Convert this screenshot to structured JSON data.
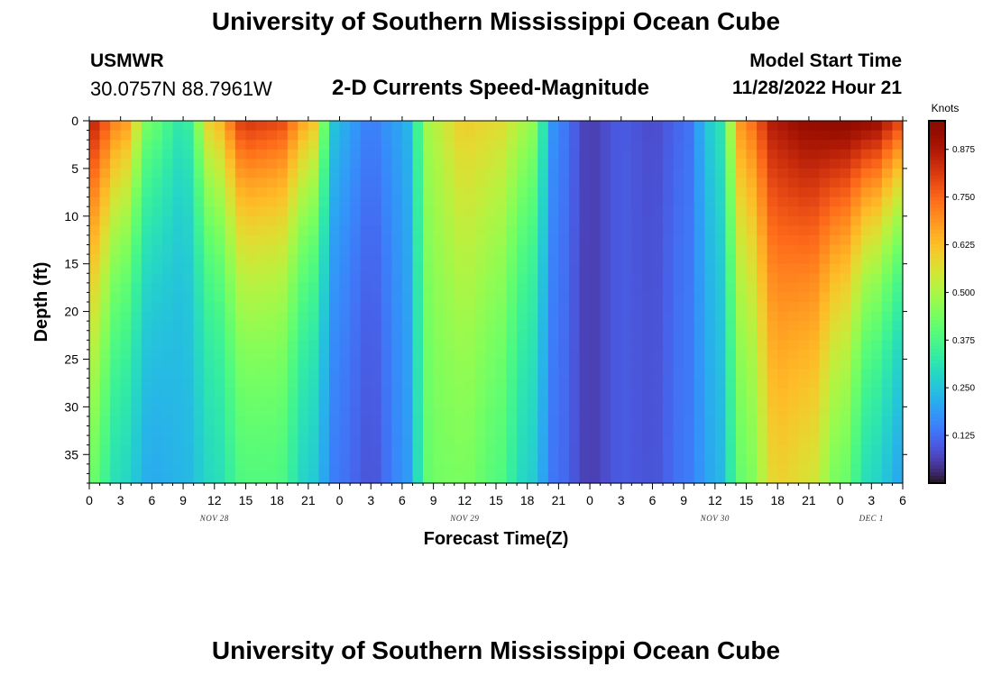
{
  "header": {
    "title": "University of Southern Mississippi Ocean Cube",
    "station_id": "USMWR",
    "coordinates": "30.0757N  88.7961W",
    "subtitle": "2-D Currents Speed-Magnitude",
    "model_start_label": "Model Start Time",
    "model_start_time": "11/28/2022 Hour 21"
  },
  "footer": {
    "title": "University of Southern Mississippi Ocean Cube"
  },
  "colors": {
    "low": "#30123b",
    "mid": "#a4fc3c",
    "high": "#7a0403",
    "background": "#ffffff"
  },
  "chart_data": {
    "type": "heatmap",
    "title": "2-D Currents Speed-Magnitude",
    "xlabel": "Forecast Time(Z)",
    "ylabel": "Depth (ft)",
    "colorbar_label": "Knots",
    "xlim": [
      0,
      78
    ],
    "ylim": [
      0,
      38
    ],
    "y_inverted": true,
    "x_ticks": [
      0,
      3,
      6,
      9,
      12,
      15,
      18,
      21,
      24,
      27,
      30,
      33,
      36,
      39,
      42,
      45,
      48,
      51,
      54,
      57,
      60,
      63,
      66,
      69,
      72,
      75,
      78
    ],
    "x_tick_labels": [
      "0",
      "3",
      "6",
      "9",
      "12",
      "15",
      "18",
      "21",
      "0",
      "3",
      "6",
      "9",
      "12",
      "15",
      "18",
      "21",
      "0",
      "3",
      "6",
      "9",
      "12",
      "15",
      "18",
      "21",
      "0",
      "3",
      "6"
    ],
    "y_ticks": [
      0,
      5,
      10,
      15,
      20,
      25,
      30,
      35
    ],
    "y_tick_labels": [
      "0",
      "5",
      "10",
      "15",
      "20",
      "25",
      "30",
      "35"
    ],
    "day_labels": [
      {
        "label": "NOV 28",
        "x": 12
      },
      {
        "label": "NOV 29",
        "x": 36
      },
      {
        "label": "NOV 30",
        "x": 60
      },
      {
        "label": "DEC 1",
        "x": 75
      }
    ],
    "colorbar_range": [
      0,
      0.95
    ],
    "colorbar_ticks": [
      0.125,
      0.25,
      0.375,
      0.5,
      0.625,
      0.75,
      0.875
    ],
    "colorbar_tick_labels": [
      "0.125",
      "0.250",
      "0.375",
      "0.500",
      "0.625",
      "0.750",
      "0.875"
    ],
    "grid_columns": 78,
    "grid_rows": 38,
    "columns": [
      {
        "t": 0,
        "surface": 0.85,
        "bottom": 0.28,
        "decay": 28
      },
      {
        "t": 3,
        "surface": 0.7,
        "bottom": 0.22,
        "decay": 20
      },
      {
        "t": 6,
        "surface": 0.42,
        "bottom": 0.18,
        "decay": 18
      },
      {
        "t": 9,
        "surface": 0.32,
        "bottom": 0.22,
        "decay": 14
      },
      {
        "t": 12,
        "surface": 0.62,
        "bottom": 0.26,
        "decay": 16
      },
      {
        "t": 15,
        "surface": 0.82,
        "bottom": 0.33,
        "decay": 18
      },
      {
        "t": 18,
        "surface": 0.8,
        "bottom": 0.33,
        "decay": 18
      },
      {
        "t": 21,
        "surface": 0.65,
        "bottom": 0.22,
        "decay": 18
      },
      {
        "t": 24,
        "surface": 0.22,
        "bottom": 0.12,
        "decay": 20
      },
      {
        "t": 27,
        "surface": 0.15,
        "bottom": 0.08,
        "decay": 20
      },
      {
        "t": 30,
        "surface": 0.2,
        "bottom": 0.16,
        "decay": 20
      },
      {
        "t": 33,
        "surface": 0.52,
        "bottom": 0.4,
        "decay": 30
      },
      {
        "t": 36,
        "surface": 0.6,
        "bottom": 0.38,
        "decay": 30
      },
      {
        "t": 39,
        "surface": 0.58,
        "bottom": 0.32,
        "decay": 30
      },
      {
        "t": 42,
        "surface": 0.5,
        "bottom": 0.22,
        "decay": 24
      },
      {
        "t": 45,
        "surface": 0.15,
        "bottom": 0.12,
        "decay": 20
      },
      {
        "t": 48,
        "surface": 0.06,
        "bottom": 0.06,
        "decay": 20
      },
      {
        "t": 51,
        "surface": 0.1,
        "bottom": 0.1,
        "decay": 20
      },
      {
        "t": 54,
        "surface": 0.08,
        "bottom": 0.09,
        "decay": 20
      },
      {
        "t": 57,
        "surface": 0.12,
        "bottom": 0.14,
        "decay": 20
      },
      {
        "t": 60,
        "surface": 0.28,
        "bottom": 0.2,
        "decay": 20
      },
      {
        "t": 63,
        "surface": 0.72,
        "bottom": 0.36,
        "decay": 24
      },
      {
        "t": 66,
        "surface": 0.88,
        "bottom": 0.48,
        "decay": 30
      },
      {
        "t": 69,
        "surface": 0.92,
        "bottom": 0.42,
        "decay": 30
      },
      {
        "t": 72,
        "surface": 0.94,
        "bottom": 0.3,
        "decay": 24
      },
      {
        "t": 75,
        "surface": 0.92,
        "bottom": 0.2,
        "decay": 18
      },
      {
        "t": 78,
        "surface": 0.8,
        "bottom": 0.14,
        "decay": 16
      }
    ]
  }
}
